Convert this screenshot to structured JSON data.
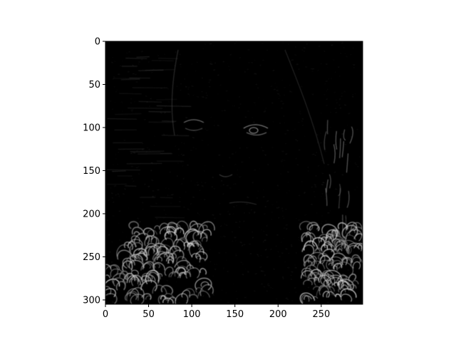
{
  "chart_data": {
    "type": "heatmap",
    "colormap": "gray",
    "description_of_content": "",
    "x": {
      "range": [
        0,
        298
      ],
      "ticks": [
        0,
        50,
        100,
        150,
        200,
        250
      ]
    },
    "y": {
      "range": [
        0,
        305
      ],
      "inverted": true,
      "ticks": [
        0,
        50,
        100,
        150,
        200,
        250,
        300
      ]
    },
    "grid": false,
    "colors": {
      "background": "#000000",
      "edge_bright": "#d8d8d8",
      "edge_dim": "#5a5a5a",
      "axis": "#000000"
    }
  }
}
